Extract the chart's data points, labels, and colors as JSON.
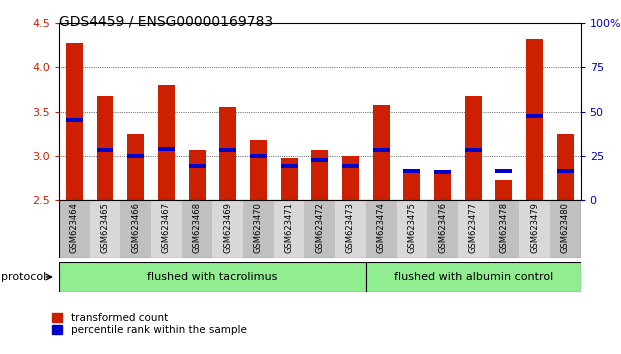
{
  "title": "GDS4459 / ENSG00000169783",
  "samples": [
    "GSM623464",
    "GSM623465",
    "GSM623466",
    "GSM623467",
    "GSM623468",
    "GSM623469",
    "GSM623470",
    "GSM623471",
    "GSM623472",
    "GSM623473",
    "GSM623474",
    "GSM623475",
    "GSM623476",
    "GSM623477",
    "GSM623478",
    "GSM623479",
    "GSM623480"
  ],
  "red_values": [
    4.27,
    3.67,
    3.25,
    3.8,
    3.07,
    3.55,
    3.18,
    2.98,
    3.07,
    3.0,
    3.57,
    2.83,
    2.82,
    3.68,
    2.73,
    4.32,
    3.25
  ],
  "blue_values": [
    3.4,
    3.07,
    3.0,
    3.08,
    2.88,
    3.07,
    3.0,
    2.88,
    2.95,
    2.88,
    3.07,
    2.83,
    2.82,
    3.07,
    2.83,
    3.45,
    2.83
  ],
  "ylim_left": [
    2.5,
    4.5
  ],
  "ylim_right": [
    0,
    100
  ],
  "yticks_left": [
    2.5,
    3.0,
    3.5,
    4.0,
    4.5
  ],
  "yticks_right": [
    0,
    25,
    50,
    75,
    100
  ],
  "ytick_labels_right": [
    "0",
    "25",
    "50",
    "75",
    "100%"
  ],
  "red_color": "#cc2000",
  "blue_color": "#0000cc",
  "group1_label": "flushed with tacrolimus",
  "group2_label": "flushed with albumin control",
  "group1_indices": [
    0,
    1,
    2,
    3,
    4,
    5,
    6,
    7,
    8,
    9
  ],
  "group2_indices": [
    10,
    11,
    12,
    13,
    14,
    15,
    16
  ],
  "protocol_label": "protocol",
  "legend_red": "transformed count",
  "legend_blue": "percentile rank within the sample",
  "baseline": 2.5,
  "group_color": "#90ee90",
  "title_fontsize": 10,
  "bar_width": 0.55
}
